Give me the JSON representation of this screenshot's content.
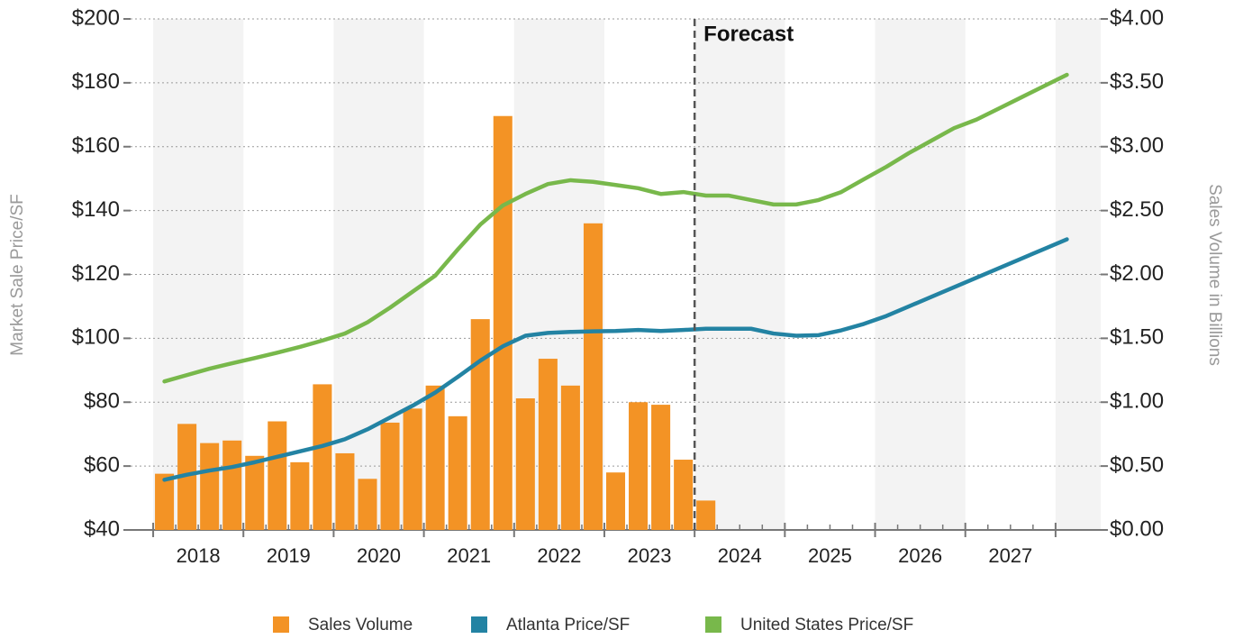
{
  "chart_data": {
    "type": "combo",
    "y_label": "Market Sale Price/SF",
    "y2_label": "Sales Volume in Billions",
    "forecast_label": "Forecast",
    "forecast_x": 2024,
    "xlim": [
      2017.75,
      2028.5
    ],
    "xticks": [
      2018,
      2019,
      2020,
      2021,
      2022,
      2023,
      2024,
      2025,
      2026,
      2027,
      2028
    ],
    "year_labels": [
      "2018",
      "2019",
      "2020",
      "2021",
      "2022",
      "2023",
      "2024",
      "2025",
      "2026",
      "2027"
    ],
    "ylim": [
      40,
      200
    ],
    "yticks": [
      {
        "value": 40,
        "label": "$40"
      },
      {
        "value": 60,
        "label": "$60"
      },
      {
        "value": 80,
        "label": "$80"
      },
      {
        "value": 100,
        "label": "$100"
      },
      {
        "value": 120,
        "label": "$120"
      },
      {
        "value": 140,
        "label": "$140"
      },
      {
        "value": 160,
        "label": "$160"
      },
      {
        "value": 180,
        "label": "$180"
      },
      {
        "value": 200,
        "label": "$200"
      }
    ],
    "y2lim": [
      0,
      4
    ],
    "y2ticks": [
      {
        "value": 0,
        "label": "$0.00"
      },
      {
        "value": 0.5,
        "label": "$0.50"
      },
      {
        "value": 1,
        "label": "$1.00"
      },
      {
        "value": 1.5,
        "label": "$1.50"
      },
      {
        "value": 2,
        "label": "$2.00"
      },
      {
        "value": 2.5,
        "label": "$2.50"
      },
      {
        "value": 3,
        "label": "$3.00"
      },
      {
        "value": 3.5,
        "label": "$3.50"
      },
      {
        "value": 4,
        "label": "$4.00"
      }
    ],
    "grid": true,
    "x": [
      2018.125,
      2018.375,
      2018.625,
      2018.875,
      2019.125,
      2019.375,
      2019.625,
      2019.875,
      2020.125,
      2020.375,
      2020.625,
      2020.875,
      2021.125,
      2021.375,
      2021.625,
      2021.875,
      2022.125,
      2022.375,
      2022.625,
      2022.875,
      2023.125,
      2023.375,
      2023.625,
      2023.875,
      2024.125,
      2024.375,
      2024.625,
      2024.875,
      2025.125,
      2025.375,
      2025.625,
      2025.875,
      2026.125,
      2026.375,
      2026.625,
      2026.875,
      2027.125,
      2027.375,
      2027.625,
      2027.875,
      2028.125
    ],
    "series": [
      {
        "name": "Sales Volume",
        "type": "bar",
        "axis": "y2",
        "color": "#f39325",
        "values": [
          0.44,
          0.83,
          0.68,
          0.7,
          0.58,
          0.85,
          0.53,
          1.14,
          0.6,
          0.4,
          0.84,
          0.95,
          1.13,
          0.89,
          1.65,
          3.24,
          1.03,
          1.34,
          1.13,
          2.4,
          0.45,
          1.0,
          0.98,
          0.55,
          0.23,
          null,
          null,
          null,
          null,
          null,
          null,
          null,
          null,
          null,
          null,
          null,
          null,
          null,
          null,
          null,
          null
        ]
      },
      {
        "name": "Atlanta Price/SF",
        "type": "line",
        "color": "#2383a3",
        "values": [
          55.7,
          57.3,
          58.6,
          59.7,
          61.2,
          62.9,
          64.6,
          66.3,
          68.4,
          71.5,
          75.2,
          78.9,
          83,
          87.9,
          93,
          97.5,
          100.8,
          101.7,
          102,
          102.2,
          102.3,
          102.6,
          102.3,
          102.6,
          103,
          103,
          103,
          101.5,
          100.8,
          101,
          102.5,
          104.5,
          107,
          110,
          113,
          116,
          119,
          122,
          125,
          128,
          131
        ]
      },
      {
        "name": "United States Price/SF",
        "type": "line",
        "color": "#78b84b",
        "values": [
          86.5,
          88.5,
          90.5,
          92.2,
          93.8,
          95.5,
          97.3,
          99.3,
          101.5,
          105,
          109.6,
          114.6,
          119.6,
          127.8,
          135.6,
          141.6,
          145.2,
          148.3,
          149.5,
          149,
          148,
          147,
          145.2,
          145.8,
          144.7,
          144.7,
          143.3,
          141.9,
          141.9,
          143.3,
          145.8,
          149.8,
          153.7,
          158,
          161.9,
          165.8,
          168.5,
          172,
          175.5,
          179,
          182.5
        ]
      }
    ]
  }
}
